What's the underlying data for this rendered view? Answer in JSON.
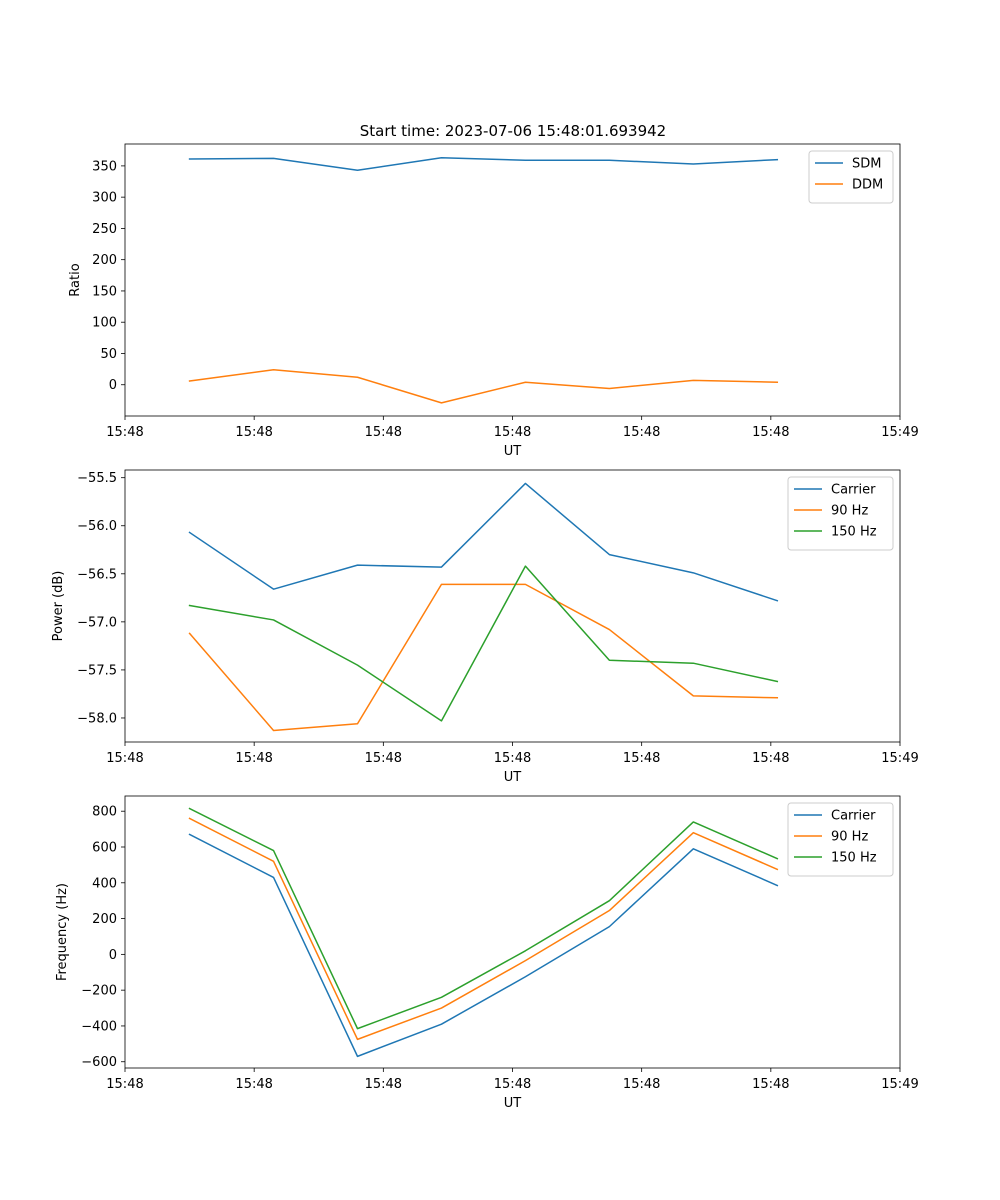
{
  "title": "Start time: 2023-07-06 15:48:01.693942",
  "chart_data": [
    {
      "type": "line",
      "ylabel": "Ratio",
      "xlabel": "UT",
      "xlim": [
        0,
        12
      ],
      "x_ticks": [
        0,
        2,
        4,
        6,
        8,
        10,
        12
      ],
      "x_tick_labels": [
        "15:48",
        "15:48",
        "15:48",
        "15:48",
        "15:48",
        "15:48",
        "15:49"
      ],
      "ylim": [
        -50,
        385
      ],
      "y_ticks": [
        0,
        50,
        100,
        150,
        200,
        250,
        300,
        350
      ],
      "y_tick_labels": [
        "0",
        "50",
        "100",
        "150",
        "200",
        "250",
        "300",
        "350"
      ],
      "legend_position": "top-right",
      "x": [
        1,
        2.3,
        3.6,
        4.9,
        6.2,
        7.5,
        8.8,
        10.1
      ],
      "series": [
        {
          "name": "SDM",
          "color": "#1f77b4",
          "values": [
            361,
            362,
            343,
            363,
            359,
            359,
            353,
            360
          ]
        },
        {
          "name": "DDM",
          "color": "#ff7f0e",
          "values": [
            6,
            24,
            12,
            -29,
            4,
            -6,
            7,
            4
          ]
        }
      ]
    },
    {
      "type": "line",
      "ylabel": "Power (dB)",
      "xlabel": "UT",
      "xlim": [
        0,
        12
      ],
      "x_ticks": [
        0,
        2,
        4,
        6,
        8,
        10,
        12
      ],
      "x_tick_labels": [
        "15:48",
        "15:48",
        "15:48",
        "15:48",
        "15:48",
        "15:48",
        "15:49"
      ],
      "ylim": [
        -58.25,
        -55.42
      ],
      "y_ticks": [
        -58.0,
        -57.5,
        -57.0,
        -56.5,
        -56.0,
        -55.5
      ],
      "y_tick_labels": [
        "−58.0",
        "−57.5",
        "−57.0",
        "−56.5",
        "−56.0",
        "−55.5"
      ],
      "legend_position": "top-right",
      "x": [
        1,
        2.3,
        3.6,
        4.9,
        6.2,
        7.5,
        8.8,
        10.1
      ],
      "series": [
        {
          "name": "Carrier",
          "color": "#1f77b4",
          "values": [
            -56.07,
            -56.66,
            -56.41,
            -56.43,
            -55.56,
            -56.3,
            -56.49,
            -56.78
          ]
        },
        {
          "name": "90 Hz",
          "color": "#ff7f0e",
          "values": [
            -57.12,
            -58.13,
            -58.06,
            -56.61,
            -56.61,
            -57.08,
            -57.77,
            -57.79
          ]
        },
        {
          "name": "150 Hz",
          "color": "#2ca02c",
          "values": [
            -56.83,
            -56.98,
            -57.45,
            -58.03,
            -56.42,
            -57.4,
            -57.43,
            -57.62
          ]
        }
      ]
    },
    {
      "type": "line",
      "ylabel": "Frequency (Hz)",
      "xlabel": "UT",
      "xlim": [
        0,
        12
      ],
      "x_ticks": [
        0,
        2,
        4,
        6,
        8,
        10,
        12
      ],
      "x_tick_labels": [
        "15:48",
        "15:48",
        "15:48",
        "15:48",
        "15:48",
        "15:48",
        "15:49"
      ],
      "ylim": [
        -635,
        885
      ],
      "y_ticks": [
        -600,
        -400,
        -200,
        0,
        200,
        400,
        600,
        800
      ],
      "y_tick_labels": [
        "−600",
        "−400",
        "−200",
        "0",
        "200",
        "400",
        "600",
        "800"
      ],
      "legend_position": "top-right",
      "x": [
        1,
        2.3,
        3.6,
        4.9,
        6.2,
        7.5,
        8.8,
        10.1
      ],
      "series": [
        {
          "name": "Carrier",
          "color": "#1f77b4",
          "values": [
            670,
            430,
            -570,
            -390,
            -125,
            155,
            590,
            385
          ]
        },
        {
          "name": "90 Hz",
          "color": "#ff7f0e",
          "values": [
            760,
            520,
            -475,
            -300,
            -35,
            245,
            680,
            475
          ]
        },
        {
          "name": "150 Hz",
          "color": "#2ca02c",
          "values": [
            815,
            580,
            -415,
            -240,
            20,
            300,
            740,
            535
          ]
        }
      ]
    }
  ]
}
